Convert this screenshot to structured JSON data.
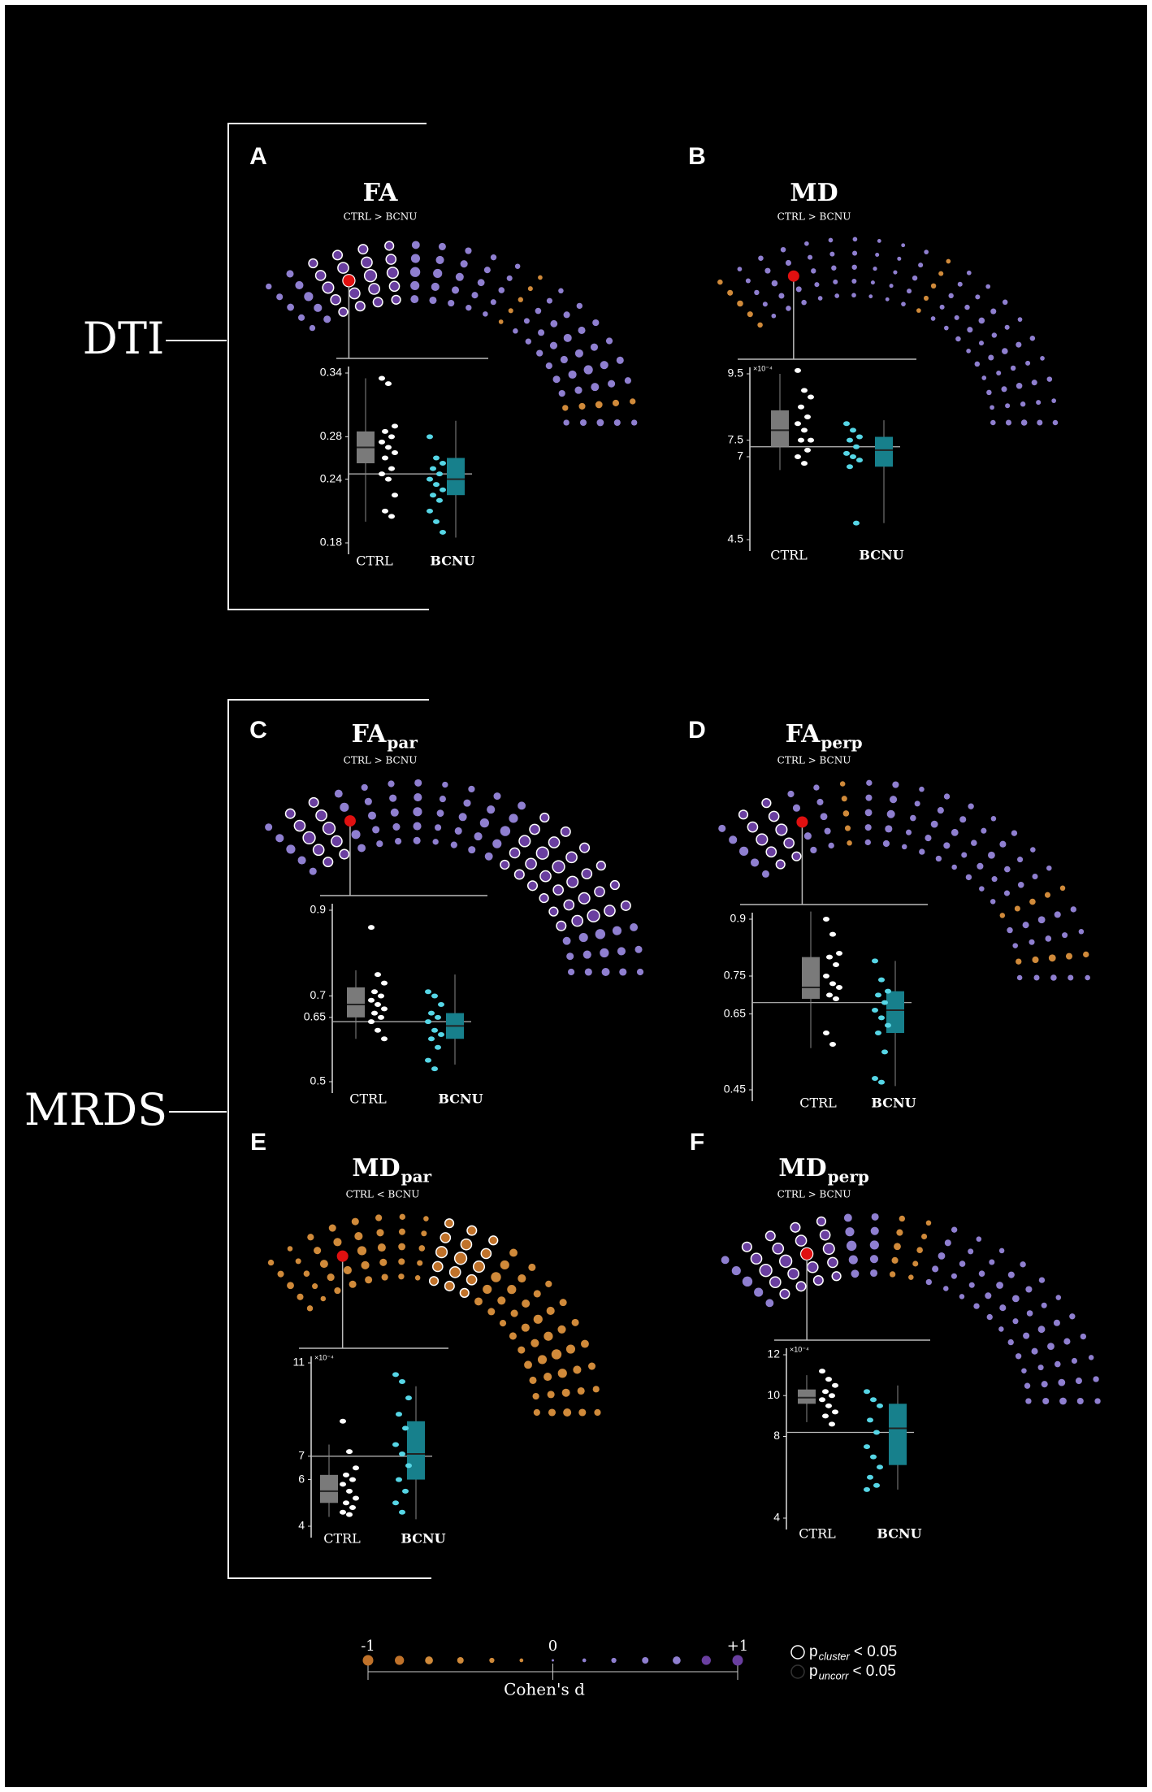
{
  "group_labels": [
    "DTI",
    "MRDS"
  ],
  "chart_data": [
    {
      "type": "box",
      "panel": "A",
      "title": "FA",
      "title_sub": null,
      "subtitle": "CTRL > BCNU",
      "categories": [
        "CTRL",
        "BCNU"
      ],
      "colors": [
        "#7a7a7a",
        "#17808c"
      ],
      "point_colors": [
        "#ffffff",
        "#56d6e6"
      ],
      "ylim": [
        0.18,
        0.34
      ],
      "yticks": [
        0.34,
        0.28,
        0.24,
        0.18
      ],
      "reference": 0.245,
      "boxes": [
        {
          "min": 0.2,
          "q1": 0.255,
          "median": 0.27,
          "q3": 0.285,
          "max": 0.335
        },
        {
          "min": 0.185,
          "q1": 0.225,
          "median": 0.24,
          "q3": 0.26,
          "max": 0.295
        }
      ],
      "points": [
        [
          0.335,
          0.33,
          0.29,
          0.285,
          0.28,
          0.275,
          0.27,
          0.265,
          0.26,
          0.25,
          0.245,
          0.24,
          0.225,
          0.21,
          0.205
        ],
        [
          0.28,
          0.26,
          0.255,
          0.25,
          0.245,
          0.24,
          0.235,
          0.23,
          0.225,
          0.22,
          0.21,
          0.2,
          0.19
        ]
      ],
      "tract_d": [
        0.4,
        0.6,
        0.8,
        0.9,
        0.9,
        0.8,
        0.7,
        0.6,
        0.5,
        0.4,
        0.3,
        -0.2,
        0.3,
        0.4,
        0.5,
        0.5,
        0.6,
        0.5,
        -0.4,
        0.4
      ]
    },
    {
      "type": "box",
      "panel": "B",
      "title": "MD",
      "title_sub": null,
      "subtitle": "CTRL > BCNU",
      "scale_label": "×10⁻⁴",
      "categories": [
        "CTRL",
        "BCNU"
      ],
      "colors": [
        "#7a7a7a",
        "#17808c"
      ],
      "point_colors": [
        "#ffffff",
        "#56d6e6"
      ],
      "ylim": [
        4.5,
        9.5
      ],
      "yticks": [
        9.5,
        7.5,
        7,
        4.5
      ],
      "reference": 7.3,
      "boxes": [
        {
          "min": 6.6,
          "q1": 7.3,
          "median": 7.8,
          "q3": 8.4,
          "max": 9.5
        },
        {
          "min": 5.0,
          "q1": 6.7,
          "median": 7.2,
          "q3": 7.6,
          "max": 8.1
        }
      ],
      "points": [
        [
          9.6,
          9.0,
          8.8,
          8.5,
          8.2,
          8.0,
          7.8,
          7.5,
          7.5,
          7.2,
          7.0,
          6.8
        ],
        [
          8.0,
          7.8,
          7.6,
          7.5,
          7.3,
          7.1,
          7.0,
          6.9,
          6.7,
          5.0
        ]
      ],
      "tract_d": [
        -0.3,
        0.2,
        0.3,
        0.3,
        0.2,
        0.2,
        0.2,
        0.1,
        0.1,
        0.2,
        -0.2,
        0.2,
        0.2,
        0.3,
        0.2,
        0.3,
        0.2,
        0.3,
        0.2,
        0.3
      ]
    },
    {
      "type": "box",
      "panel": "C",
      "title": "FA",
      "title_sub": "par",
      "subtitle": "CTRL > BCNU",
      "categories": [
        "CTRL",
        "BCNU"
      ],
      "colors": [
        "#7a7a7a",
        "#17808c"
      ],
      "point_colors": [
        "#ffffff",
        "#56d6e6"
      ],
      "ylim": [
        0.5,
        0.9
      ],
      "yticks": [
        0.9,
        0.7,
        0.65,
        0.5
      ],
      "reference": 0.64,
      "boxes": [
        {
          "min": 0.6,
          "q1": 0.65,
          "median": 0.68,
          "q3": 0.72,
          "max": 0.76
        },
        {
          "min": 0.54,
          "q1": 0.6,
          "median": 0.63,
          "q3": 0.66,
          "max": 0.75
        }
      ],
      "points": [
        [
          0.86,
          0.75,
          0.73,
          0.71,
          0.7,
          0.69,
          0.68,
          0.67,
          0.66,
          0.65,
          0.64,
          0.62,
          0.6
        ],
        [
          0.71,
          0.7,
          0.68,
          0.66,
          0.65,
          0.64,
          0.62,
          0.61,
          0.6,
          0.58,
          0.55,
          0.53
        ]
      ],
      "tract_d": [
        0.6,
        0.9,
        0.9,
        0.7,
        0.5,
        0.5,
        0.6,
        0.4,
        0.5,
        0.6,
        0.7,
        0.8,
        0.9,
        0.9,
        0.8,
        0.8,
        0.9,
        0.7,
        0.6,
        0.5
      ]
    },
    {
      "type": "box",
      "panel": "D",
      "title": "FA",
      "title_sub": "perp",
      "subtitle": "CTRL > BCNU",
      "categories": [
        "CTRL",
        "BCNU"
      ],
      "colors": [
        "#7a7a7a",
        "#17808c"
      ],
      "point_colors": [
        "#ffffff",
        "#56d6e6"
      ],
      "ylim": [
        0.45,
        0.9
      ],
      "yticks": [
        0.9,
        0.75,
        0.65,
        0.45
      ],
      "reference": 0.68,
      "boxes": [
        {
          "min": 0.56,
          "q1": 0.69,
          "median": 0.72,
          "q3": 0.8,
          "max": 0.92
        },
        {
          "min": 0.46,
          "q1": 0.6,
          "median": 0.66,
          "q3": 0.71,
          "max": 0.79
        }
      ],
      "points": [
        [
          0.9,
          0.86,
          0.81,
          0.8,
          0.78,
          0.75,
          0.73,
          0.72,
          0.7,
          0.69,
          0.6,
          0.57
        ],
        [
          0.79,
          0.74,
          0.71,
          0.7,
          0.68,
          0.66,
          0.64,
          0.62,
          0.6,
          0.55,
          0.48,
          0.47
        ]
      ],
      "tract_d": [
        0.6,
        0.8,
        0.8,
        0.5,
        0.4,
        -0.3,
        0.4,
        0.5,
        0.3,
        0.4,
        0.4,
        0.3,
        0.4,
        0.3,
        0.3,
        -0.3,
        0.4,
        0.3,
        -0.4,
        0.3
      ]
    },
    {
      "type": "box",
      "panel": "E",
      "title": "MD",
      "title_sub": "par",
      "subtitle": "CTRL < BCNU",
      "scale_label": "×10⁻⁴",
      "categories": [
        "CTRL",
        "BCNU"
      ],
      "colors": [
        "#7a7a7a",
        "#17808c"
      ],
      "point_colors": [
        "#ffffff",
        "#56d6e6"
      ],
      "ylim": [
        4,
        11
      ],
      "yticks": [
        11,
        7,
        6,
        4
      ],
      "reference": 7,
      "boxes": [
        {
          "min": 4.4,
          "q1": 5.0,
          "median": 5.5,
          "q3": 6.2,
          "max": 7.5
        },
        {
          "min": 4.3,
          "q1": 6.0,
          "median": 7.1,
          "q3": 8.5,
          "max": 10.0
        }
      ],
      "points": [
        [
          8.5,
          7.2,
          6.5,
          6.2,
          6.0,
          5.8,
          5.5,
          5.2,
          5.0,
          4.8,
          4.6,
          4.5
        ],
        [
          10.5,
          10.2,
          9.5,
          8.8,
          8.2,
          7.5,
          7.1,
          6.6,
          6.0,
          5.5,
          5.0,
          4.6
        ]
      ],
      "tract_d": [
        -0.4,
        -0.3,
        -0.5,
        -0.6,
        -0.6,
        -0.5,
        -0.4,
        -0.3,
        -0.8,
        -0.9,
        -0.8,
        -0.7,
        -0.6,
        -0.5,
        -0.6,
        -0.6,
        -0.7,
        -0.6,
        -0.5,
        -0.5
      ]
    },
    {
      "type": "box",
      "panel": "F",
      "title": "MD",
      "title_sub": "perp",
      "subtitle": "CTRL > BCNU",
      "scale_label": "×10⁻⁴",
      "categories": [
        "CTRL",
        "BCNU"
      ],
      "colors": [
        "#7a7a7a",
        "#17808c"
      ],
      "point_colors": [
        "#ffffff",
        "#56d6e6"
      ],
      "ylim": [
        4,
        12
      ],
      "yticks": [
        12,
        10,
        8,
        4
      ],
      "reference": 8.2,
      "boxes": [
        {
          "min": 8.7,
          "q1": 9.6,
          "median": 9.9,
          "q3": 10.3,
          "max": 11.0
        },
        {
          "min": 5.4,
          "q1": 6.6,
          "median": 8.4,
          "q3": 9.6,
          "max": 10.5
        }
      ],
      "points": [
        [
          11.2,
          10.8,
          10.5,
          10.2,
          10.0,
          9.8,
          9.5,
          9.2,
          9.0,
          8.6
        ],
        [
          10.2,
          9.8,
          9.5,
          8.8,
          8.2,
          7.5,
          7.0,
          6.5,
          6.0,
          5.6,
          5.4
        ]
      ],
      "tract_d": [
        0.7,
        0.9,
        0.9,
        0.9,
        0.8,
        0.7,
        0.6,
        -0.4,
        -0.3,
        0.4,
        0.3,
        0.3,
        0.4,
        0.4,
        0.3,
        0.4,
        0.4,
        0.3,
        0.4,
        0.4
      ]
    }
  ],
  "legend": {
    "label": "Cohen's d",
    "xlim": [
      -1,
      1
    ],
    "xticks": [
      -1,
      0,
      {
        "value": 1,
        "label": "+1"
      }
    ],
    "colors": {
      "negative": "#c0722a",
      "positive": "#6a3fa0"
    },
    "scale_points": [
      -1,
      -0.83,
      -0.67,
      -0.5,
      -0.33,
      -0.17,
      0,
      0.17,
      0.33,
      0.5,
      0.67,
      0.83,
      1
    ],
    "entries": [
      {
        "symbol": "p",
        "sub": "cluster",
        "text": "< 0.05"
      },
      {
        "symbol": "p",
        "sub": "uncorr",
        "text": "< 0.05"
      }
    ]
  }
}
